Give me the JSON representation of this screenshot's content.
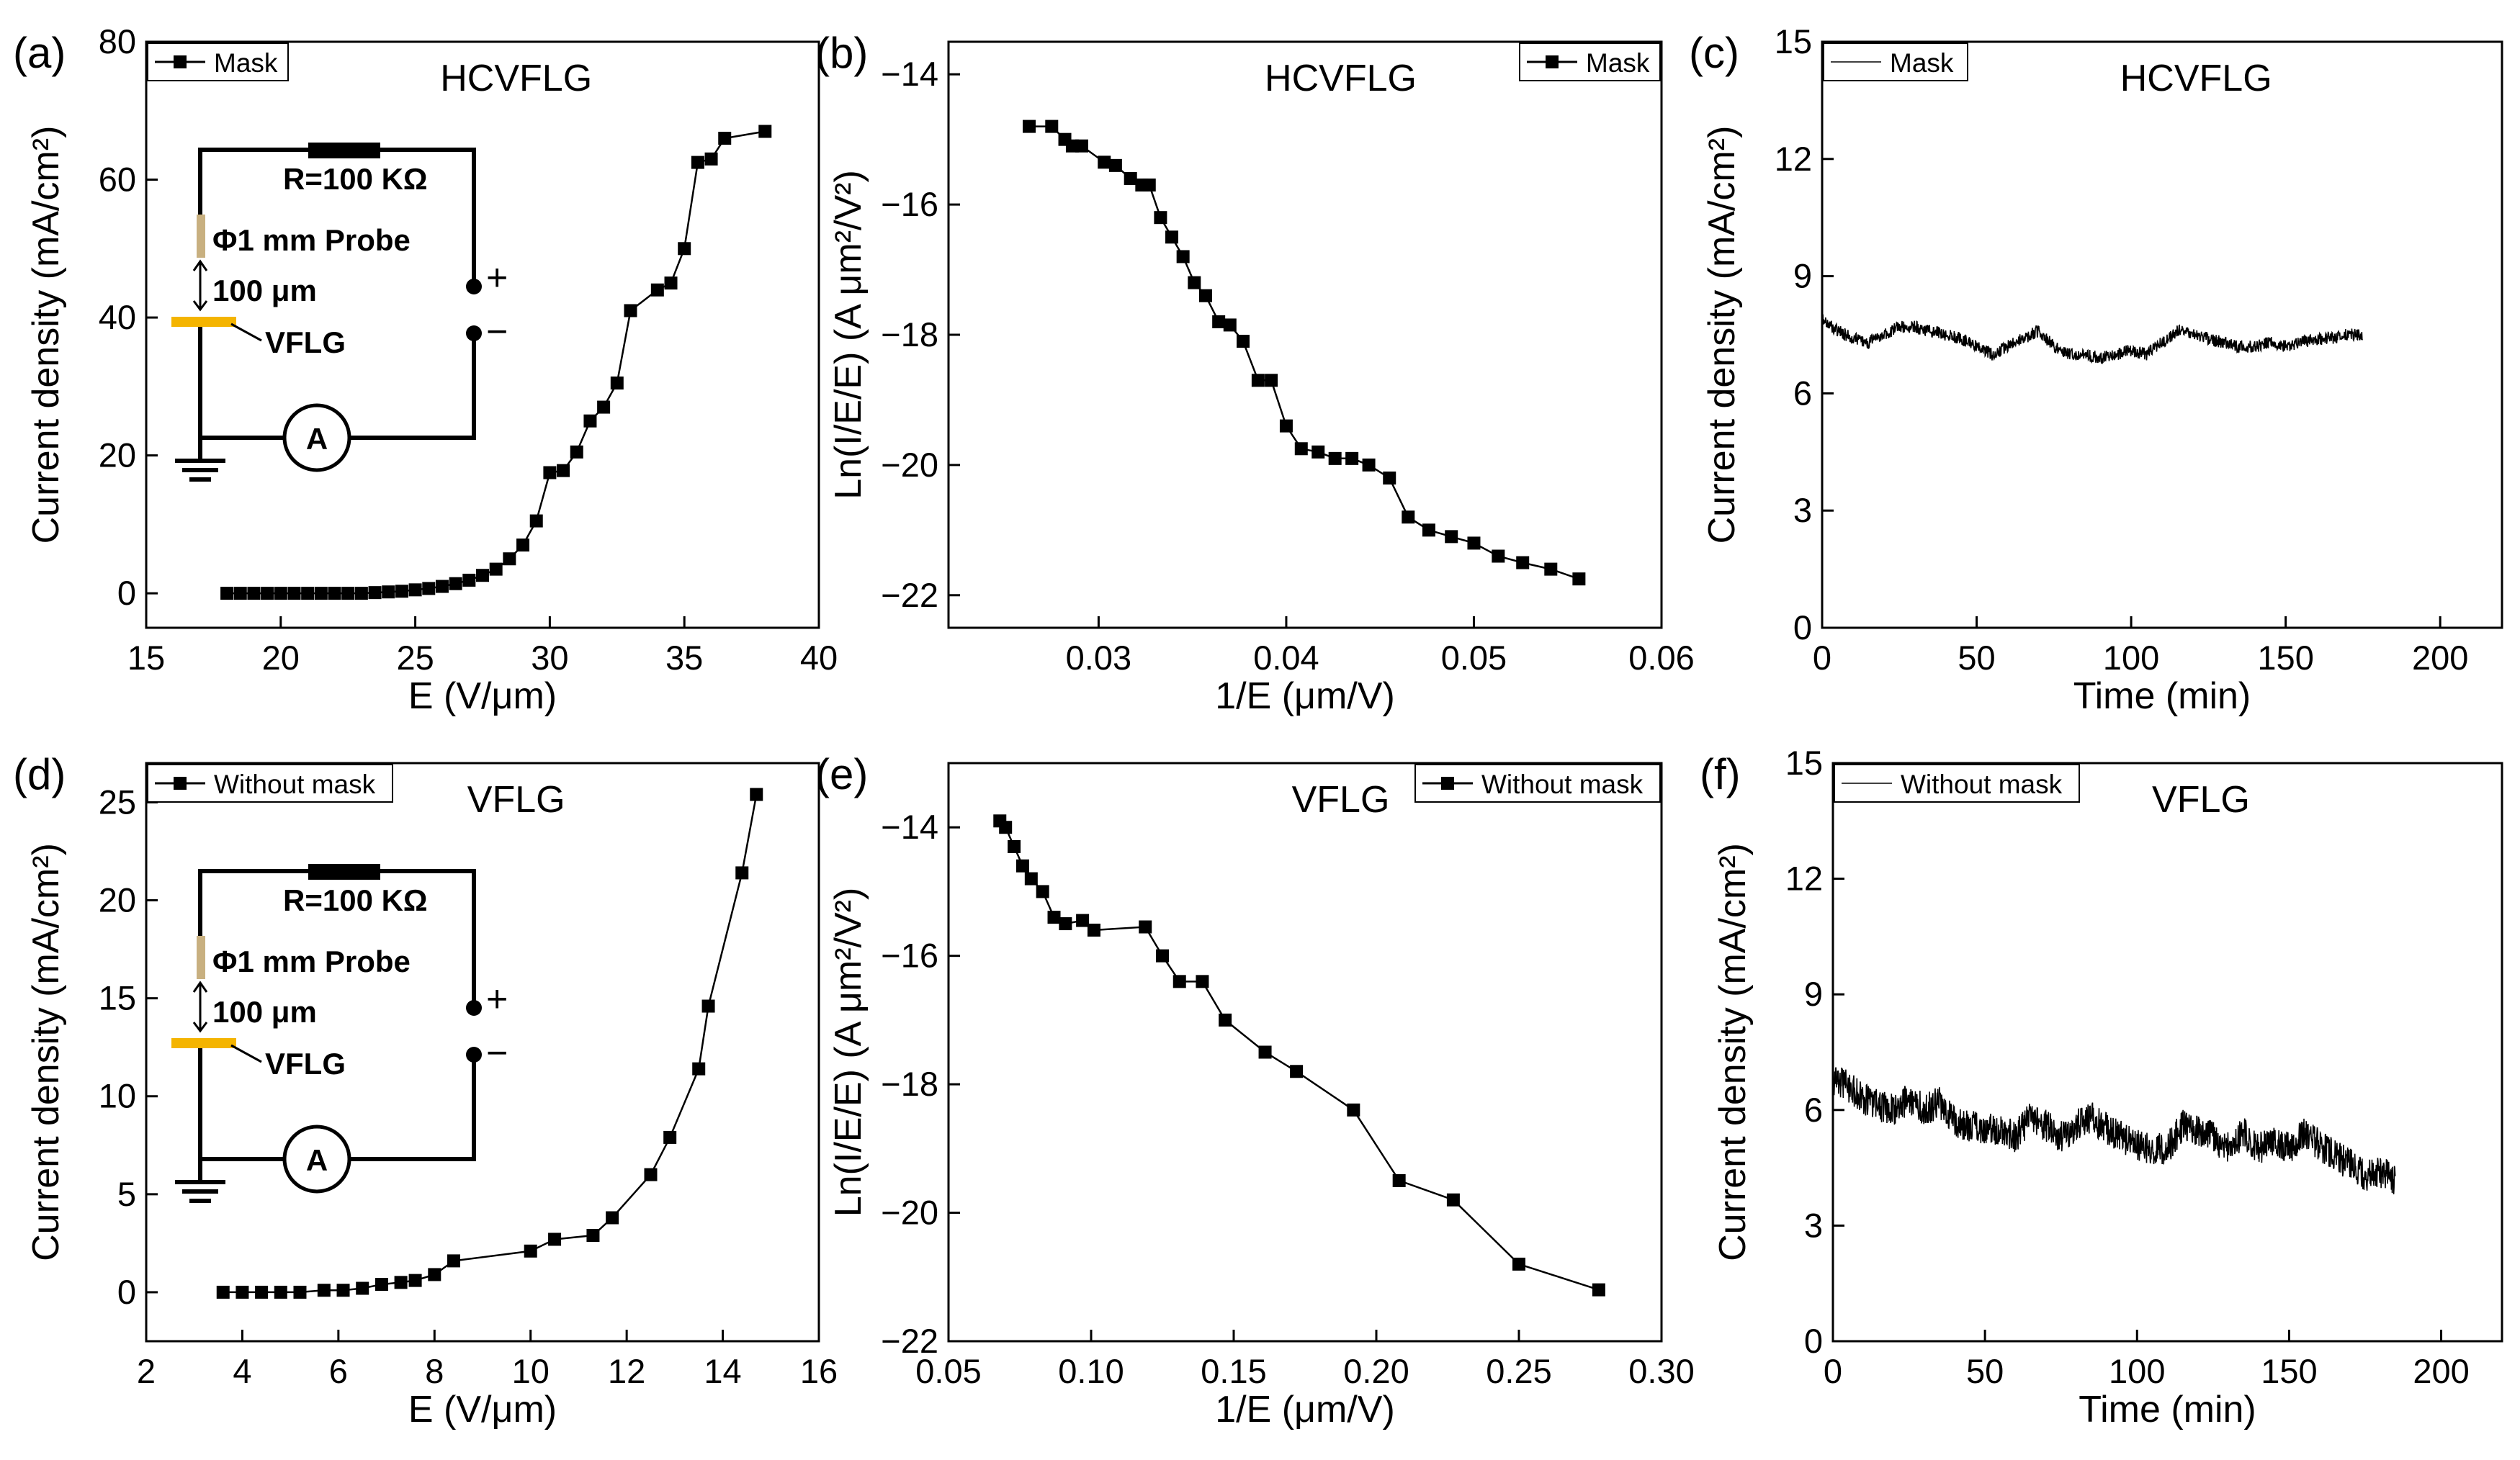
{
  "figure": {
    "panels": [
      {
        "label": "(a)",
        "title": "HCVFLG",
        "legend": "Mask",
        "legend_marker": true,
        "legend_pos": "top-left",
        "xlabel": "E (V/μm)",
        "ylabel": "Current density (mA/cm²)",
        "xlim": [
          15,
          40
        ],
        "ylim": [
          -5,
          80
        ],
        "xticks": [
          "15",
          "20",
          "25",
          "30",
          "35",
          "40"
        ],
        "yticks": [
          "0",
          "20",
          "40",
          "60",
          "80"
        ],
        "inset": {
          "resistor": "R=100 KΩ",
          "probe": "Φ1 mm Probe",
          "gap": "100 μm",
          "sample": "VFLG",
          "ammeter": "A",
          "plus": "+",
          "minus": "−"
        }
      },
      {
        "label": "(b)",
        "title": "HCVFLG",
        "legend": "Mask",
        "legend_marker": true,
        "legend_pos": "top-right",
        "xlabel": "1/E (μm/V)",
        "ylabel": "Ln(I/E/E) (A μm²/V²)",
        "xlim": [
          0.022,
          0.06
        ],
        "ylim": [
          -22.5,
          -13.5
        ],
        "xticks": [
          "0.03",
          "0.04",
          "0.05",
          "0.06"
        ],
        "yticks": [
          "−22",
          "−20",
          "−18",
          "−16",
          "−14"
        ]
      },
      {
        "label": "(c)",
        "title": "HCVFLG",
        "legend": "Mask",
        "legend_marker": false,
        "legend_pos": "top-left",
        "xlabel": "Time (min)",
        "ylabel": "Current density (mA/cm²)",
        "xlim": [
          0,
          220
        ],
        "ylim": [
          0,
          15
        ],
        "xticks": [
          "0",
          "50",
          "100",
          "150",
          "200"
        ],
        "yticks": [
          "0",
          "3",
          "6",
          "9",
          "12",
          "15"
        ]
      },
      {
        "label": "(d)",
        "title": "VFLG",
        "legend": "Without mask",
        "legend_marker": true,
        "legend_pos": "top-left",
        "xlabel": "E (V/μm)",
        "ylabel": "Current density (mA/cm²)",
        "xlim": [
          2,
          16
        ],
        "ylim": [
          -2.5,
          27
        ],
        "xticks": [
          "2",
          "4",
          "6",
          "8",
          "10",
          "12",
          "14",
          "16"
        ],
        "yticks": [
          "0",
          "5",
          "10",
          "15",
          "20",
          "25"
        ],
        "inset": {
          "resistor": "R=100 KΩ",
          "probe": "Φ1 mm Probe",
          "gap": "100 μm",
          "sample": "VFLG",
          "ammeter": "A",
          "plus": "+",
          "minus": "−"
        }
      },
      {
        "label": "(e)",
        "title": "VFLG",
        "legend": "Without mask",
        "legend_marker": true,
        "legend_pos": "top-right",
        "xlabel": "1/E (μm/V)",
        "ylabel": "Ln(I/E/E) (A μm²/V²)",
        "xlim": [
          0.05,
          0.3
        ],
        "ylim": [
          -22,
          -13
        ],
        "xticks": [
          "0.05",
          "0.10",
          "0.15",
          "0.20",
          "0.25",
          "0.30"
        ],
        "yticks": [
          "−22",
          "−20",
          "−18",
          "−16",
          "−14"
        ]
      },
      {
        "label": "(f)",
        "title": "VFLG",
        "legend": "Without mask",
        "legend_marker": false,
        "legend_pos": "top-left",
        "xlabel": "Time (min)",
        "ylabel": "Current density (mA/cm²)",
        "xlim": [
          0,
          220
        ],
        "ylim": [
          0,
          15
        ],
        "xticks": [
          "0",
          "50",
          "100",
          "150",
          "200"
        ],
        "yticks": [
          "0",
          "3",
          "6",
          "9",
          "12",
          "15"
        ]
      }
    ]
  },
  "chart_data": [
    {
      "type": "line",
      "panel": "(a)",
      "title": "HCVFLG",
      "xlabel": "E (V/μm)",
      "ylabel": "Current density (mA/cm²)",
      "xlim": [
        15,
        40
      ],
      "ylim": [
        -5,
        80
      ],
      "series": [
        {
          "name": "Mask",
          "marker": "square",
          "x": [
            18,
            18.5,
            19,
            19.5,
            20,
            20.5,
            21,
            21.5,
            22,
            22.5,
            23,
            23.5,
            24,
            24.5,
            25,
            25.5,
            26,
            26.5,
            27,
            27.5,
            28,
            28.5,
            29,
            29.5,
            30,
            30.5,
            31,
            31.5,
            32,
            32.5,
            33,
            34,
            34.5,
            35,
            35.5,
            36,
            36.5,
            38
          ],
          "y": [
            0,
            0,
            0,
            0,
            0,
            0,
            0,
            0,
            0,
            0,
            0,
            0.1,
            0.2,
            0.3,
            0.5,
            0.7,
            1,
            1.4,
            1.9,
            2.6,
            3.5,
            5,
            7,
            10.5,
            17.5,
            17.8,
            20.5,
            25,
            27,
            30.5,
            41,
            44,
            45,
            50,
            62.5,
            63,
            66,
            67
          ]
        }
      ]
    },
    {
      "type": "line",
      "panel": "(b)",
      "title": "HCVFLG",
      "xlabel": "1/E (μm/V)",
      "ylabel": "Ln(I/E/E) (A μm²/V²)",
      "xlim": [
        0.022,
        0.06
      ],
      "ylim": [
        -22.5,
        -13.5
      ],
      "series": [
        {
          "name": "Mask",
          "marker": "square",
          "x": [
            0.0263,
            0.0275,
            0.0282,
            0.0286,
            0.0291,
            0.0303,
            0.0309,
            0.0317,
            0.0323,
            0.0327,
            0.0333,
            0.0339,
            0.0345,
            0.0351,
            0.0357,
            0.0364,
            0.037,
            0.0377,
            0.0385,
            0.0392,
            0.04,
            0.0408,
            0.0417,
            0.0426,
            0.0435,
            0.0444,
            0.0455,
            0.0465,
            0.0476,
            0.0488,
            0.05,
            0.0513,
            0.0526,
            0.0541,
            0.0556
          ],
          "y": [
            -14.8,
            -14.8,
            -15.0,
            -15.1,
            -15.1,
            -15.35,
            -15.4,
            -15.6,
            -15.7,
            -15.7,
            -16.2,
            -16.5,
            -16.8,
            -17.2,
            -17.4,
            -17.8,
            -17.85,
            -18.1,
            -18.7,
            -18.7,
            -19.4,
            -19.75,
            -19.8,
            -19.9,
            -19.9,
            -20.0,
            -20.2,
            -20.8,
            -21.0,
            -21.1,
            -21.2,
            -21.4,
            -21.5,
            -21.6,
            -21.75
          ]
        }
      ]
    },
    {
      "type": "line",
      "panel": "(c)",
      "title": "HCVFLG",
      "xlabel": "Time (min)",
      "ylabel": "Current density (mA/cm²)",
      "xlim": [
        0,
        220
      ],
      "ylim": [
        0,
        15
      ],
      "series": [
        {
          "name": "Mask",
          "marker": "none",
          "x": [
            0,
            5,
            10,
            15,
            20,
            25,
            30,
            35,
            40,
            45,
            50,
            55,
            60,
            65,
            70,
            75,
            80,
            85,
            90,
            95,
            100,
            105,
            110,
            115,
            120,
            125,
            130,
            135,
            140,
            145,
            150,
            155,
            160,
            165,
            170,
            175
          ],
          "y": [
            7.9,
            7.6,
            7.4,
            7.3,
            7.5,
            7.7,
            7.7,
            7.6,
            7.5,
            7.4,
            7.2,
            7.0,
            7.2,
            7.4,
            7.6,
            7.2,
            7.0,
            7.0,
            6.9,
            7.0,
            7.1,
            7.0,
            7.3,
            7.6,
            7.5,
            7.4,
            7.3,
            7.2,
            7.2,
            7.3,
            7.2,
            7.3,
            7.4,
            7.4,
            7.5,
            7.5
          ]
        }
      ]
    },
    {
      "type": "line",
      "panel": "(d)",
      "title": "VFLG",
      "xlabel": "E (V/μm)",
      "ylabel": "Current density (mA/cm²)",
      "xlim": [
        2,
        16
      ],
      "ylim": [
        -2.5,
        27
      ],
      "series": [
        {
          "name": "Without mask",
          "marker": "square",
          "x": [
            3.6,
            4.0,
            4.4,
            4.8,
            5.2,
            5.7,
            6.1,
            6.5,
            6.9,
            7.3,
            7.6,
            8.0,
            8.4,
            10.0,
            10.5,
            11.3,
            11.7,
            12.5,
            12.9,
            13.5,
            13.7,
            14.4,
            14.7
          ],
          "y": [
            0,
            0,
            0,
            0,
            0,
            0.1,
            0.1,
            0.2,
            0.4,
            0.5,
            0.6,
            0.9,
            1.6,
            2.1,
            2.7,
            2.9,
            3.8,
            6.0,
            7.9,
            11.4,
            14.6,
            21.4,
            25.4
          ]
        }
      ]
    },
    {
      "type": "line",
      "panel": "(e)",
      "title": "VFLG",
      "xlabel": "1/E (μm/V)",
      "ylabel": "Ln(I/E/E) (A μm²/V²)",
      "xlim": [
        0.05,
        0.3
      ],
      "ylim": [
        -22,
        -13
      ],
      "series": [
        {
          "name": "Without mask",
          "marker": "square",
          "x": [
            0.068,
            0.07,
            0.073,
            0.076,
            0.079,
            0.083,
            0.087,
            0.091,
            0.097,
            0.101,
            0.119,
            0.125,
            0.131,
            0.139,
            0.147,
            0.161,
            0.172,
            0.192,
            0.208,
            0.227,
            0.25,
            0.278
          ],
          "y": [
            -13.9,
            -14.0,
            -14.3,
            -14.6,
            -14.8,
            -15.0,
            -15.4,
            -15.5,
            -15.45,
            -15.6,
            -15.55,
            -16.0,
            -16.4,
            -16.4,
            -17.0,
            -17.5,
            -17.8,
            -18.4,
            -19.5,
            -19.8,
            -20.8,
            -21.2
          ]
        }
      ]
    },
    {
      "type": "line",
      "panel": "(f)",
      "title": "VFLG",
      "xlabel": "Time (min)",
      "ylabel": "Current density (mA/cm²)",
      "xlim": [
        0,
        220
      ],
      "ylim": [
        0,
        15
      ],
      "series": [
        {
          "name": "Without mask",
          "marker": "none",
          "x": [
            0,
            5,
            10,
            15,
            20,
            25,
            30,
            35,
            40,
            45,
            50,
            55,
            60,
            65,
            70,
            75,
            80,
            85,
            90,
            95,
            100,
            105,
            110,
            115,
            120,
            125,
            130,
            135,
            140,
            145,
            150,
            155,
            160,
            165,
            170,
            175,
            180,
            185
          ],
          "y": [
            6.8,
            6.6,
            6.3,
            6.1,
            6.0,
            6.3,
            6.0,
            6.2,
            5.7,
            5.6,
            5.5,
            5.5,
            5.3,
            5.8,
            5.6,
            5.3,
            5.6,
            5.8,
            5.5,
            5.3,
            5.1,
            5.0,
            5.0,
            5.6,
            5.5,
            5.3,
            5.0,
            5.4,
            5.0,
            5.2,
            5.0,
            5.4,
            5.1,
            4.8,
            4.6,
            4.3,
            4.4,
            4.2
          ]
        }
      ]
    }
  ]
}
